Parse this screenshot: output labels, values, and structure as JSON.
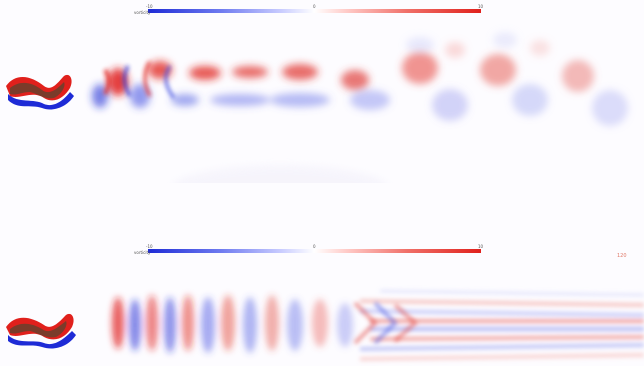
{
  "panels": [
    {
      "colorbar": {
        "title": "vorticity",
        "min_label": "-10",
        "mid_label": "0",
        "max_label": "10"
      },
      "frame_label": ""
    },
    {
      "colorbar": {
        "title": "vorticity",
        "min_label": "-10",
        "mid_label": "0",
        "max_label": "10"
      },
      "frame_label": "120"
    }
  ],
  "colors": {
    "positive": "#e0201c",
    "negative": "#1e2bd6",
    "body": "#7a3b2a"
  }
}
